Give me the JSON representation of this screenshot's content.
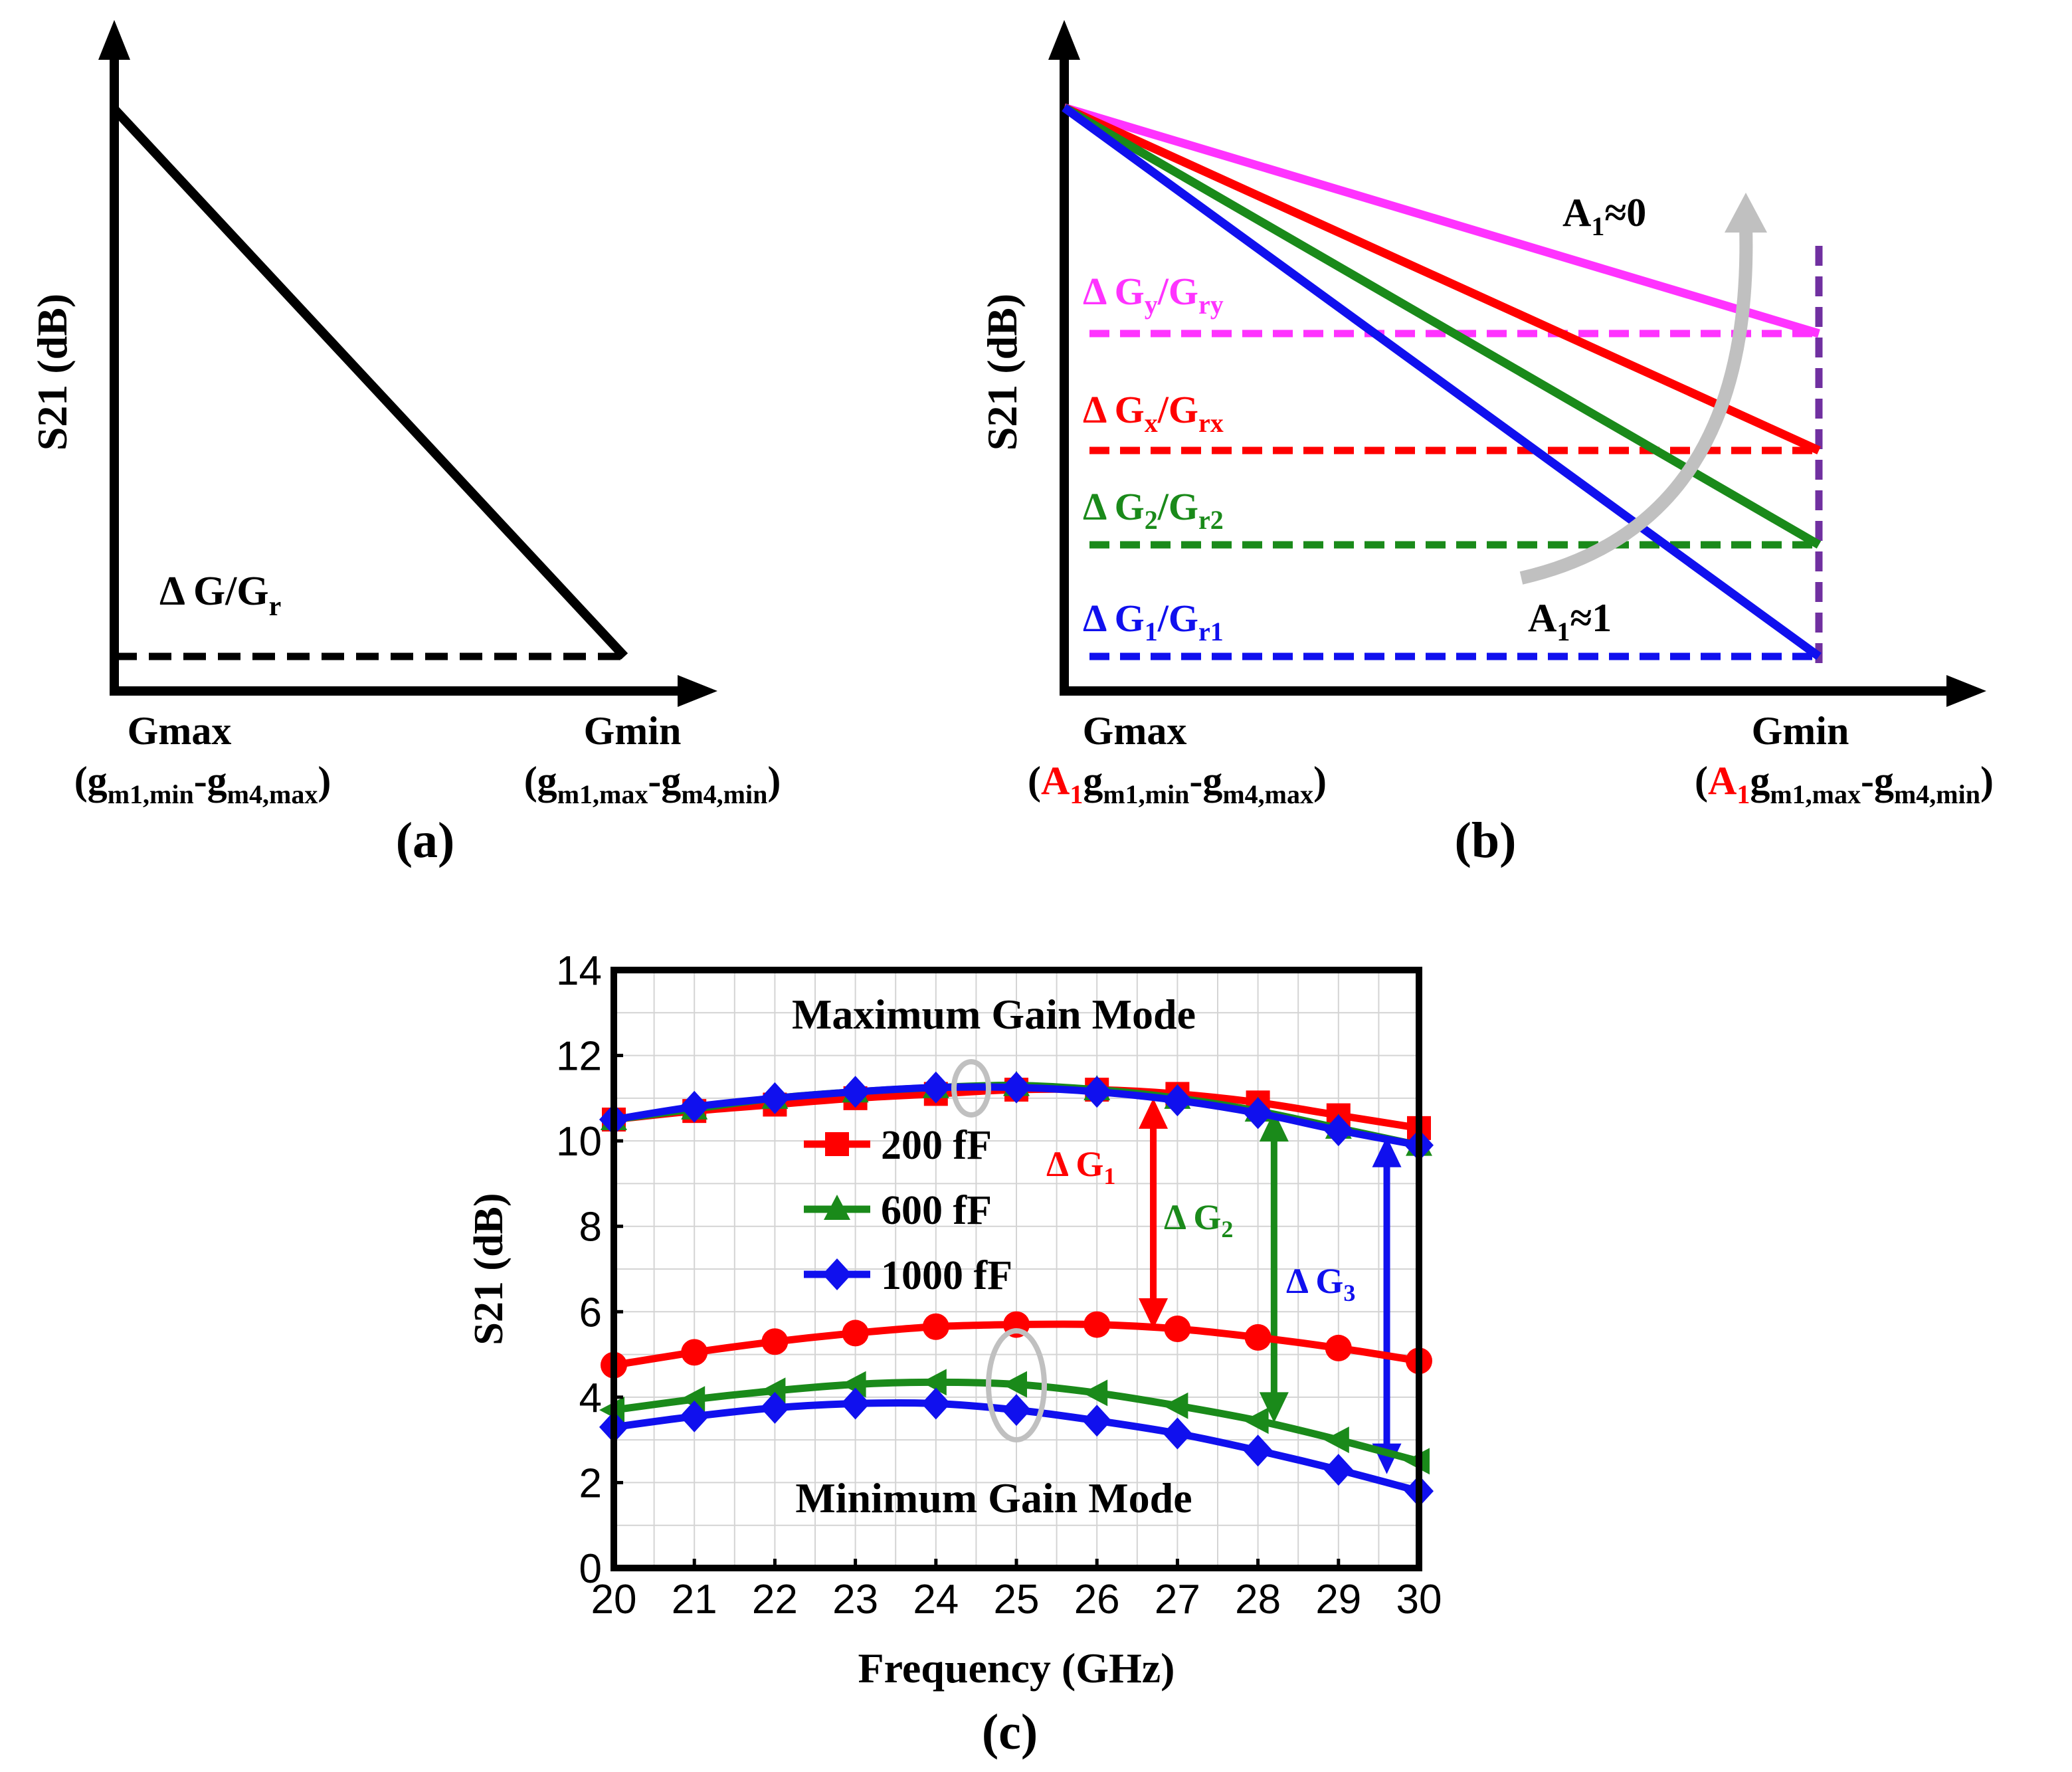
{
  "colors": {
    "black": "#000000",
    "red": "#ff0000",
    "green": "#1a8a1a",
    "blue": "#1010ee",
    "magenta": "#ff33ff",
    "purple": "#7030a0",
    "gray": "#c0c0c0",
    "grid": "#d4d4d4"
  },
  "panel_a": {
    "label": "(a)",
    "ylabel": "S21 (dB)",
    "delta": "Δ G/G",
    "delta_sub": "r",
    "x_left": "Gmax",
    "x_right": "Gmin",
    "x_left_expr": [
      "(g",
      "m1,min",
      "-g",
      "m4,max",
      ")"
    ],
    "x_right_expr": [
      "(g",
      "m1,max",
      "-g",
      "m4,min",
      ")"
    ]
  },
  "panel_b": {
    "label": "(b)",
    "ylabel": "S21 (dB)",
    "x_left": "Gmax",
    "x_right": "Gmin",
    "x_left_expr": [
      "(",
      "A",
      "1",
      "g",
      "m1,min",
      "-g",
      "m4,max",
      ")"
    ],
    "x_right_expr": [
      "(",
      "A",
      "1",
      "g",
      "m1,max",
      "-g",
      "m4,min",
      ")"
    ],
    "a1_zero": [
      "A",
      "1",
      "≈0"
    ],
    "a1_one": [
      "A",
      "1",
      "≈1"
    ],
    "deltas": [
      {
        "name": "y",
        "parts": [
          "Δ G",
          "y",
          "/G",
          "ry"
        ],
        "color": "#ff33ff"
      },
      {
        "name": "x",
        "parts": [
          "Δ G",
          "x",
          "/G",
          "rx"
        ],
        "color": "#ff0000"
      },
      {
        "name": "2",
        "parts": [
          "Δ G",
          "2",
          "/G",
          "r2"
        ],
        "color": "#1a8a1a"
      },
      {
        "name": "1",
        "parts": [
          "Δ G",
          "1",
          "/G",
          "r1"
        ],
        "color": "#1010ee"
      }
    ]
  },
  "chart_data": {
    "type": "line",
    "panel_label": "(c)",
    "xlabel": "Frequency (GHz)",
    "ylabel": "S21 (dB)",
    "xlim": [
      20,
      30
    ],
    "ylim": [
      0,
      14
    ],
    "xticks": [
      20,
      21,
      22,
      23,
      24,
      25,
      26,
      27,
      28,
      29,
      30
    ],
    "yticks": [
      0,
      2,
      4,
      6,
      8,
      10,
      12,
      14
    ],
    "grid": true,
    "x": [
      20,
      21,
      22,
      23,
      24,
      25,
      26,
      27,
      28,
      29,
      30
    ],
    "annotations": {
      "max_mode": "Maximum Gain Mode",
      "min_mode": "Minimum Gain Mode",
      "dg1": [
        "Δ G",
        "1"
      ],
      "dg2": [
        "Δ G",
        "2"
      ],
      "dg3": [
        "Δ G",
        "3"
      ]
    },
    "legend_position": "center-left",
    "series": [
      {
        "name": "200 fF",
        "mode": "max",
        "marker": "square",
        "color": "#ff0000",
        "values": [
          10.5,
          10.7,
          10.85,
          11.0,
          11.1,
          11.2,
          11.2,
          11.1,
          10.9,
          10.6,
          10.3
        ]
      },
      {
        "name": "600 fF",
        "mode": "max",
        "marker": "triangle",
        "color": "#1a8a1a",
        "values": [
          10.5,
          10.75,
          11.0,
          11.15,
          11.25,
          11.3,
          11.2,
          11.0,
          10.7,
          10.3,
          9.9
        ]
      },
      {
        "name": "1000 fF",
        "mode": "max",
        "marker": "diamond",
        "color": "#1010ee",
        "values": [
          10.5,
          10.8,
          11.0,
          11.15,
          11.25,
          11.25,
          11.15,
          10.95,
          10.65,
          10.25,
          9.9
        ]
      },
      {
        "name": "200 fF",
        "mode": "min",
        "marker": "circle",
        "color": "#ff0000",
        "values": [
          4.75,
          5.05,
          5.3,
          5.5,
          5.65,
          5.7,
          5.7,
          5.6,
          5.4,
          5.15,
          4.85
        ]
      },
      {
        "name": "600 fF",
        "mode": "min",
        "marker": "triangle-left",
        "color": "#1a8a1a",
        "values": [
          3.7,
          3.95,
          4.15,
          4.3,
          4.35,
          4.3,
          4.1,
          3.8,
          3.45,
          3.0,
          2.5
        ]
      },
      {
        "name": "1000 fF",
        "mode": "min",
        "marker": "diamond",
        "color": "#1010ee",
        "values": [
          3.3,
          3.55,
          3.75,
          3.85,
          3.85,
          3.7,
          3.45,
          3.15,
          2.75,
          2.3,
          1.8
        ]
      }
    ],
    "legend": [
      "200 fF",
      "600 fF",
      "1000 fF"
    ]
  }
}
